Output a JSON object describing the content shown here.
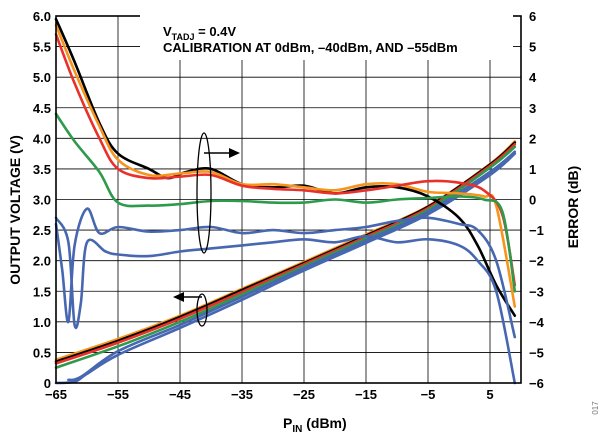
{
  "chart_data": {
    "type": "line",
    "annotation": {
      "line1_prefix": "V",
      "line1_sub": "TADJ",
      "line1_suffix": " = 0.4V",
      "line2": "CALIBRATION AT 0dBm, –40dBm, AND –55dBm"
    },
    "xlabel": {
      "main": "P",
      "sub": "IN",
      "suffix": " (dBm)"
    },
    "ylabel_left": "OUTPUT VOLTAGE (V)",
    "ylabel_right": "ERROR (dB)",
    "xlim": [
      -65,
      10
    ],
    "ylim_left": [
      0,
      6
    ],
    "ylim_right": [
      -6,
      6
    ],
    "x_ticks": [
      -65,
      -55,
      -45,
      -35,
      -25,
      -15,
      -5,
      5
    ],
    "x_tick_labels": [
      "−65",
      "−55",
      "−45",
      "−35",
      "−25",
      "−15",
      "−5",
      "5"
    ],
    "y_left_ticks": [
      0,
      0.5,
      1.0,
      1.5,
      2.0,
      2.5,
      3.0,
      3.5,
      4.0,
      4.5,
      5.0,
      5.5,
      6.0
    ],
    "y_left_tick_labels": [
      "0",
      "0.5",
      "1.0",
      "1.5",
      "2.0",
      "2.5",
      "3.0",
      "3.5",
      "4.0",
      "4.5",
      "5.0",
      "5.5",
      "6.0"
    ],
    "y_right_ticks": [
      -6,
      -5,
      -4,
      -3,
      -2,
      -1,
      0,
      1,
      2,
      3,
      4,
      5,
      6
    ],
    "y_right_tick_labels": [
      "−6",
      "−5",
      "−4",
      "−3",
      "−2",
      "−1",
      "0",
      "1",
      "2",
      "3",
      "4",
      "5",
      "6"
    ],
    "grid": true,
    "watermark": "017",
    "colors": {
      "black": "#000000",
      "orange": "#f7941d",
      "red": "#e8312a",
      "green": "#2e9a4b",
      "blue": "#4767b1",
      "grid": "#000000"
    },
    "voltage_series": [
      {
        "color": "orange",
        "axis": "left",
        "points": [
          [
            -65,
            0.38
          ],
          [
            -55,
            0.72
          ],
          [
            -45,
            1.1
          ],
          [
            -35,
            1.54
          ],
          [
            -25,
            1.98
          ],
          [
            -15,
            2.43
          ],
          [
            -5,
            2.89
          ],
          [
            5,
            3.58
          ],
          [
            9,
            3.95
          ]
        ]
      },
      {
        "color": "black",
        "axis": "left",
        "points": [
          [
            -65,
            0.35
          ],
          [
            -55,
            0.69
          ],
          [
            -45,
            1.08
          ],
          [
            -35,
            1.52
          ],
          [
            -25,
            1.96
          ],
          [
            -15,
            2.41
          ],
          [
            -5,
            2.88
          ],
          [
            5,
            3.57
          ],
          [
            9,
            3.93
          ]
        ]
      },
      {
        "color": "red",
        "axis": "left",
        "points": [
          [
            -65,
            0.32
          ],
          [
            -55,
            0.66
          ],
          [
            -45,
            1.05
          ],
          [
            -35,
            1.49
          ],
          [
            -25,
            1.94
          ],
          [
            -15,
            2.39
          ],
          [
            -5,
            2.86
          ],
          [
            5,
            3.55
          ],
          [
            9,
            3.9
          ]
        ]
      },
      {
        "color": "green",
        "axis": "left",
        "points": [
          [
            -65,
            0.25
          ],
          [
            -55,
            0.6
          ],
          [
            -45,
            1.0
          ],
          [
            -35,
            1.45
          ],
          [
            -25,
            1.91
          ],
          [
            -15,
            2.36
          ],
          [
            -5,
            2.83
          ],
          [
            5,
            3.52
          ],
          [
            9,
            3.86
          ]
        ]
      },
      {
        "color": "blue",
        "axis": "left",
        "points": [
          [
            -63,
            0.05
          ],
          [
            -61,
            0.1
          ],
          [
            -55,
            0.52
          ],
          [
            -45,
            0.95
          ],
          [
            -35,
            1.41
          ],
          [
            -25,
            1.88
          ],
          [
            -15,
            2.33
          ],
          [
            -5,
            2.8
          ],
          [
            5,
            3.45
          ],
          [
            9,
            3.78
          ]
        ]
      },
      {
        "color": "blue",
        "axis": "left",
        "points": [
          [
            -65,
            0.0
          ],
          [
            -62,
            0.02
          ],
          [
            -60,
            0.15
          ],
          [
            -55,
            0.46
          ],
          [
            -45,
            0.9
          ],
          [
            -35,
            1.36
          ],
          [
            -25,
            1.84
          ],
          [
            -15,
            2.29
          ],
          [
            -5,
            2.76
          ],
          [
            5,
            3.4
          ],
          [
            9,
            3.75
          ]
        ]
      }
    ],
    "error_series": [
      {
        "color": "black",
        "axis": "right",
        "points": [
          [
            -65,
            5.9
          ],
          [
            -62,
            4.5
          ],
          [
            -58,
            2.5
          ],
          [
            -55,
            1.5
          ],
          [
            -50,
            1.0
          ],
          [
            -47,
            0.7
          ],
          [
            -44,
            0.9
          ],
          [
            -40,
            1.0
          ],
          [
            -35,
            0.5
          ],
          [
            -30,
            0.4
          ],
          [
            -25,
            0.45
          ],
          [
            -20,
            0.2
          ],
          [
            -15,
            0.4
          ],
          [
            -10,
            0.4
          ],
          [
            -5,
            0.1
          ],
          [
            0,
            -0.6
          ],
          [
            3,
            -1.5
          ],
          [
            6,
            -2.8
          ],
          [
            9,
            -3.8
          ]
        ]
      },
      {
        "color": "orange",
        "axis": "right",
        "points": [
          [
            -65,
            5.7
          ],
          [
            -62,
            4.2
          ],
          [
            -58,
            2.4
          ],
          [
            -55,
            1.3
          ],
          [
            -50,
            0.8
          ],
          [
            -45,
            0.85
          ],
          [
            -40,
            0.9
          ],
          [
            -35,
            0.5
          ],
          [
            -30,
            0.5
          ],
          [
            -25,
            0.4
          ],
          [
            -20,
            0.3
          ],
          [
            -15,
            0.5
          ],
          [
            -10,
            0.5
          ],
          [
            -5,
            0.25
          ],
          [
            0,
            0.2
          ],
          [
            4,
            0.1
          ],
          [
            6,
            -0.2
          ],
          [
            9,
            -3.5
          ]
        ]
      },
      {
        "color": "red",
        "axis": "right",
        "points": [
          [
            -65,
            5.4
          ],
          [
            -62,
            3.8
          ],
          [
            -58,
            2.0
          ],
          [
            -55,
            1.0
          ],
          [
            -50,
            0.7
          ],
          [
            -45,
            0.75
          ],
          [
            -40,
            0.8
          ],
          [
            -35,
            0.45
          ],
          [
            -30,
            0.35
          ],
          [
            -25,
            0.3
          ],
          [
            -20,
            0.2
          ],
          [
            -15,
            0.3
          ],
          [
            -10,
            0.45
          ],
          [
            -5,
            0.6
          ],
          [
            0,
            0.55
          ],
          [
            4,
            0.3
          ],
          [
            7,
            -0.5
          ],
          [
            9,
            -2.8
          ]
        ]
      },
      {
        "color": "green",
        "axis": "right",
        "points": [
          [
            -65,
            2.8
          ],
          [
            -62,
            1.9
          ],
          [
            -58,
            0.9
          ],
          [
            -55,
            -0.1
          ],
          [
            -50,
            -0.2
          ],
          [
            -45,
            -0.15
          ],
          [
            -40,
            -0.05
          ],
          [
            -35,
            -0.05
          ],
          [
            -30,
            -0.1
          ],
          [
            -25,
            -0.1
          ],
          [
            -20,
            0.0
          ],
          [
            -15,
            -0.1
          ],
          [
            -10,
            0.0
          ],
          [
            -5,
            0.05
          ],
          [
            0,
            0.1
          ],
          [
            4,
            0.0
          ],
          [
            7,
            -0.4
          ],
          [
            9,
            -3.0
          ]
        ]
      },
      {
        "color": "blue",
        "axis": "right",
        "points": [
          [
            -65,
            -0.8
          ],
          [
            -64,
            -2.3
          ],
          [
            -63,
            -4.0
          ],
          [
            -62,
            -1.5
          ],
          [
            -60,
            -0.3
          ],
          [
            -58,
            -1.1
          ],
          [
            -55,
            -0.9
          ],
          [
            -50,
            -1.05
          ],
          [
            -45,
            -1.0
          ],
          [
            -40,
            -0.9
          ],
          [
            -35,
            -1.1
          ],
          [
            -30,
            -1.0
          ],
          [
            -25,
            -1.1
          ],
          [
            -20,
            -1.0
          ],
          [
            -15,
            -0.9
          ],
          [
            -10,
            -0.7
          ],
          [
            -5,
            -0.6
          ],
          [
            0,
            -0.8
          ],
          [
            3,
            -1.0
          ],
          [
            6,
            -2.0
          ],
          [
            9,
            -4.5
          ]
        ]
      },
      {
        "color": "blue",
        "axis": "right",
        "points": [
          [
            -65,
            -0.6
          ],
          [
            -63,
            -1.4
          ],
          [
            -62,
            -4.1
          ],
          [
            -61,
            -3.4
          ],
          [
            -60,
            -1.4
          ],
          [
            -57,
            -1.7
          ],
          [
            -55,
            -1.8
          ],
          [
            -50,
            -1.85
          ],
          [
            -45,
            -1.7
          ],
          [
            -40,
            -1.6
          ],
          [
            -35,
            -1.5
          ],
          [
            -30,
            -1.4
          ],
          [
            -25,
            -1.3
          ],
          [
            -20,
            -1.4
          ],
          [
            -15,
            -1.2
          ],
          [
            -10,
            -1.4
          ],
          [
            -5,
            -1.3
          ],
          [
            0,
            -1.5
          ],
          [
            3,
            -2.0
          ],
          [
            6,
            -3.0
          ],
          [
            9,
            -6.0
          ]
        ]
      }
    ]
  }
}
